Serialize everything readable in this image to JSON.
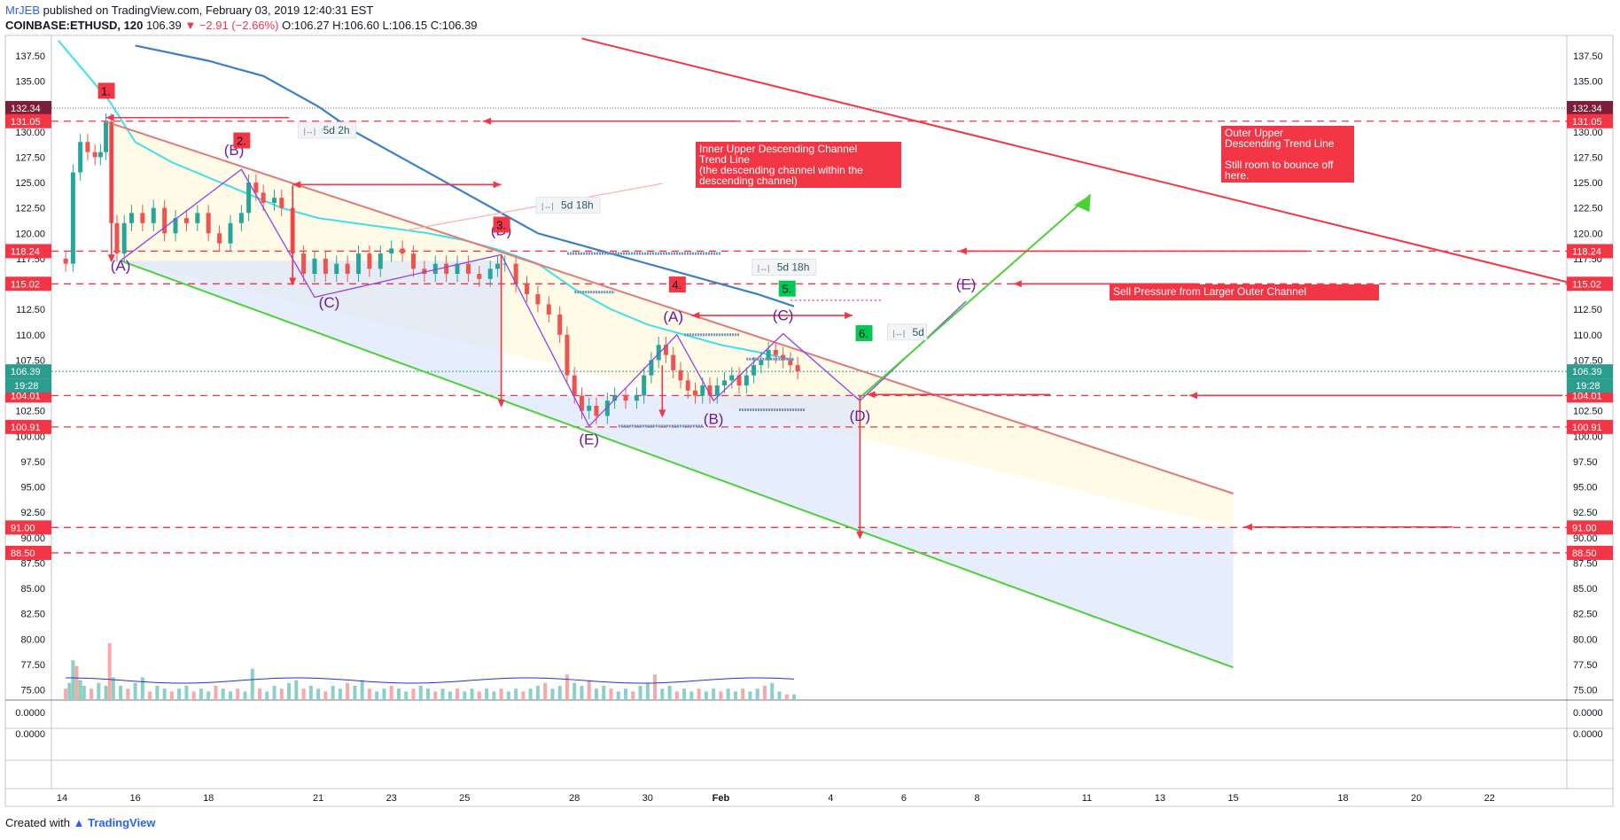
{
  "header": {
    "publisher": "MrJEB",
    "published_text": "published on TradingView.com, February 03, 2019 12:40:31 EST",
    "symbol": "COINBASE:ETHUSD, 120",
    "last": "106.39",
    "change": "−2.91 (−2.66%)",
    "ohlc": "O:106.27 H:106.60 L:106.15 C:106.39"
  },
  "footer": {
    "created_with": "Created with",
    "brand": "TradingView"
  },
  "chart_data": {
    "type": "candlestick",
    "symbol": "COINBASE:ETHUSD",
    "interval": "120",
    "ylim": [
      73.5,
      139.5
    ],
    "y_ticks": [
      "137.50",
      "135.00",
      "132.50",
      "130.00",
      "127.50",
      "125.00",
      "122.50",
      "120.00",
      "117.50",
      "115.00",
      "112.50",
      "110.00",
      "107.50",
      "105.00",
      "102.50",
      "100.00",
      "97.50",
      "95.00",
      "92.50",
      "90.00",
      "87.50",
      "85.00",
      "82.50",
      "80.00",
      "77.50",
      "75.00"
    ],
    "x_ticks": [
      {
        "label": "14",
        "d": 14
      },
      {
        "label": "16",
        "d": 16
      },
      {
        "label": "18",
        "d": 18
      },
      {
        "label": "21",
        "d": 21
      },
      {
        "label": "23",
        "d": 23
      },
      {
        "label": "25",
        "d": 25
      },
      {
        "label": "28",
        "d": 28
      },
      {
        "label": "30",
        "d": 30
      },
      {
        "label": "Feb",
        "d": 32
      },
      {
        "label": "4",
        "d": 35
      },
      {
        "label": "6",
        "d": 37
      },
      {
        "label": "8",
        "d": 39
      },
      {
        "label": "11",
        "d": 42
      },
      {
        "label": "13",
        "d": 44
      },
      {
        "label": "15",
        "d": 46
      },
      {
        "label": "18",
        "d": 49
      },
      {
        "label": "20",
        "d": 51
      },
      {
        "label": "22",
        "d": 53
      }
    ],
    "price_series": [
      [
        13.9,
        117.5
      ],
      [
        14.1,
        117
      ],
      [
        14.3,
        126
      ],
      [
        14.5,
        129
      ],
      [
        14.7,
        128
      ],
      [
        14.9,
        127.5
      ],
      [
        15.05,
        128
      ],
      [
        15.2,
        131
      ],
      [
        15.35,
        121
      ],
      [
        15.5,
        118
      ],
      [
        15.7,
        121
      ],
      [
        15.9,
        122
      ],
      [
        16.2,
        121
      ],
      [
        16.5,
        122.5
      ],
      [
        16.8,
        120
      ],
      [
        17.1,
        121.5
      ],
      [
        17.4,
        121
      ],
      [
        17.7,
        122
      ],
      [
        18.0,
        120
      ],
      [
        18.3,
        119
      ],
      [
        18.6,
        121
      ],
      [
        18.9,
        122
      ],
      [
        19.1,
        125
      ],
      [
        19.3,
        124
      ],
      [
        19.5,
        123
      ],
      [
        19.8,
        123.5
      ],
      [
        20.0,
        122.5
      ],
      [
        20.3,
        118
      ],
      [
        20.6,
        116
      ],
      [
        20.9,
        117.5
      ],
      [
        21.2,
        116
      ],
      [
        21.5,
        117
      ],
      [
        21.8,
        116
      ],
      [
        22.1,
        118
      ],
      [
        22.4,
        116.5
      ],
      [
        22.7,
        118
      ],
      [
        23.0,
        118.5
      ],
      [
        23.3,
        118
      ],
      [
        23.6,
        116.5
      ],
      [
        23.9,
        116
      ],
      [
        24.2,
        117
      ],
      [
        24.5,
        116
      ],
      [
        24.8,
        117
      ],
      [
        25.1,
        116
      ],
      [
        25.4,
        115.5
      ],
      [
        25.7,
        116.5
      ],
      [
        25.9,
        117
      ],
      [
        26.1,
        117
      ],
      [
        26.4,
        115
      ],
      [
        26.7,
        114
      ],
      [
        27.0,
        113
      ],
      [
        27.3,
        112
      ],
      [
        27.6,
        110
      ],
      [
        27.8,
        106
      ],
      [
        28.0,
        104
      ],
      [
        28.2,
        102.5
      ],
      [
        28.4,
        103
      ],
      [
        28.6,
        102
      ],
      [
        28.9,
        103.5
      ],
      [
        29.1,
        104
      ],
      [
        29.4,
        103.5
      ],
      [
        29.7,
        104
      ],
      [
        29.9,
        106
      ],
      [
        30.1,
        107.5
      ],
      [
        30.3,
        109
      ],
      [
        30.5,
        108
      ],
      [
        30.7,
        106.5
      ],
      [
        30.9,
        105.5
      ],
      [
        31.1,
        104.5
      ],
      [
        31.3,
        104
      ],
      [
        31.5,
        105
      ],
      [
        31.7,
        104
      ],
      [
        31.9,
        105
      ],
      [
        32.1,
        105.5
      ],
      [
        32.3,
        106
      ],
      [
        32.5,
        105
      ],
      [
        32.7,
        106
      ],
      [
        32.9,
        107
      ],
      [
        33.1,
        107.5
      ],
      [
        33.3,
        108.5
      ],
      [
        33.5,
        108
      ],
      [
        33.7,
        107.5
      ],
      [
        33.9,
        107
      ],
      [
        34.1,
        106.4
      ]
    ],
    "ma_fast": [
      [
        13.9,
        139
      ],
      [
        14.6,
        136
      ],
      [
        15.3,
        133
      ],
      [
        16,
        129
      ],
      [
        17,
        127
      ],
      [
        18,
        125.5
      ],
      [
        19,
        124
      ],
      [
        20,
        122.5
      ],
      [
        21,
        121.5
      ],
      [
        22,
        121
      ],
      [
        23,
        120.5
      ],
      [
        24,
        120
      ],
      [
        25,
        119.3
      ],
      [
        26,
        118.3
      ],
      [
        27,
        117
      ],
      [
        28,
        114.5
      ],
      [
        29,
        112.5
      ],
      [
        30,
        111
      ],
      [
        31,
        110
      ],
      [
        32,
        109
      ],
      [
        33,
        108.3
      ],
      [
        34,
        107.5
      ]
    ],
    "ma_slow": [
      [
        16,
        138.5
      ],
      [
        18,
        137
      ],
      [
        19.5,
        135.5
      ],
      [
        21,
        132.5
      ],
      [
        22,
        130
      ],
      [
        23,
        128
      ],
      [
        24,
        126
      ],
      [
        25,
        124
      ],
      [
        26,
        122
      ],
      [
        27,
        120
      ],
      [
        28,
        119
      ],
      [
        29,
        118
      ],
      [
        30,
        117
      ],
      [
        31,
        116
      ],
      [
        32,
        115
      ],
      [
        33,
        114
      ],
      [
        34,
        112.8
      ]
    ],
    "volume_bars": [
      [
        14.1,
        4
      ],
      [
        14.2,
        6
      ],
      [
        14.3,
        14
      ],
      [
        14.4,
        12
      ],
      [
        14.5,
        7
      ],
      [
        14.6,
        5
      ],
      [
        14.8,
        4
      ],
      [
        15.0,
        6
      ],
      [
        15.2,
        5
      ],
      [
        15.3,
        20
      ],
      [
        15.4,
        8
      ],
      [
        15.6,
        5
      ],
      [
        15.8,
        4
      ],
      [
        16.0,
        6
      ],
      [
        16.2,
        8
      ],
      [
        16.4,
        3
      ],
      [
        16.6,
        5
      ],
      [
        16.8,
        4
      ],
      [
        17.0,
        3
      ],
      [
        17.2,
        4
      ],
      [
        17.4,
        5
      ],
      [
        17.6,
        3
      ],
      [
        17.8,
        4
      ],
      [
        18.0,
        3
      ],
      [
        18.2,
        5
      ],
      [
        18.4,
        4
      ],
      [
        18.6,
        3
      ],
      [
        18.8,
        4
      ],
      [
        19.0,
        3
      ],
      [
        19.2,
        11
      ],
      [
        19.4,
        4
      ],
      [
        19.6,
        3
      ],
      [
        19.8,
        5
      ],
      [
        20.0,
        4
      ],
      [
        20.2,
        6
      ],
      [
        20.4,
        7
      ],
      [
        20.6,
        4
      ],
      [
        20.8,
        5
      ],
      [
        21.0,
        4
      ],
      [
        21.2,
        3
      ],
      [
        21.4,
        5
      ],
      [
        21.6,
        4
      ],
      [
        21.8,
        6
      ],
      [
        22.0,
        5
      ],
      [
        22.2,
        7
      ],
      [
        22.4,
        4
      ],
      [
        22.6,
        3
      ],
      [
        22.8,
        4
      ],
      [
        23.0,
        5
      ],
      [
        23.2,
        4
      ],
      [
        23.4,
        3
      ],
      [
        23.6,
        4
      ],
      [
        23.8,
        5
      ],
      [
        24.0,
        4
      ],
      [
        24.2,
        3
      ],
      [
        24.4,
        4
      ],
      [
        24.6,
        3
      ],
      [
        24.8,
        4
      ],
      [
        25.0,
        3
      ],
      [
        25.2,
        4
      ],
      [
        25.4,
        3
      ],
      [
        25.6,
        4
      ],
      [
        25.8,
        3
      ],
      [
        26.0,
        4
      ],
      [
        26.2,
        3
      ],
      [
        26.4,
        4
      ],
      [
        26.6,
        3
      ],
      [
        26.8,
        4
      ],
      [
        27.0,
        5
      ],
      [
        27.2,
        6
      ],
      [
        27.4,
        4
      ],
      [
        27.6,
        5
      ],
      [
        27.8,
        9
      ],
      [
        28.0,
        6
      ],
      [
        28.2,
        5
      ],
      [
        28.4,
        7
      ],
      [
        28.6,
        4
      ],
      [
        28.8,
        5
      ],
      [
        29.0,
        4
      ],
      [
        29.2,
        3
      ],
      [
        29.4,
        4
      ],
      [
        29.6,
        3
      ],
      [
        29.8,
        5
      ],
      [
        30.0,
        6
      ],
      [
        30.2,
        9
      ],
      [
        30.4,
        4
      ],
      [
        30.6,
        5
      ],
      [
        30.8,
        3
      ],
      [
        31.0,
        4
      ],
      [
        31.2,
        3
      ],
      [
        31.4,
        4
      ],
      [
        31.6,
        3
      ],
      [
        31.8,
        4
      ],
      [
        32.0,
        3
      ],
      [
        32.2,
        4
      ],
      [
        32.4,
        3
      ],
      [
        32.6,
        4
      ],
      [
        32.8,
        3
      ],
      [
        33.0,
        4
      ],
      [
        33.2,
        5
      ],
      [
        33.4,
        6
      ],
      [
        33.6,
        3
      ],
      [
        33.8,
        2
      ],
      [
        34.0,
        2
      ]
    ],
    "y_labels": [
      {
        "v": 132.34,
        "label": "132.34",
        "color": "#7b1f3a"
      },
      {
        "v": 131.05,
        "label": "131.05",
        "color": "#f23645"
      },
      {
        "v": 118.24,
        "label": "118.24",
        "color": "#f23645"
      },
      {
        "v": 115.02,
        "label": "115.02",
        "color": "#f23645"
      },
      {
        "v": 106.39,
        "label": "106.39",
        "color": "#2a9d8f"
      },
      {
        "v": 104.01,
        "label": "104.01",
        "color": "#f23645"
      },
      {
        "v": 100.91,
        "label": "100.91",
        "color": "#f23645"
      },
      {
        "v": 91.0,
        "label": "91.00",
        "color": "#f23645"
      },
      {
        "v": 88.5,
        "label": "88.50",
        "color": "#f23645"
      }
    ],
    "countdown": "19:28",
    "horizontal_lines": [
      131.05,
      118.24,
      115.02,
      104.01,
      100.91,
      91.0,
      88.5
    ],
    "indicator_panel": {
      "label": "0.0000"
    },
    "wave_labels": [
      {
        "text": "(A)",
        "d": 15.6,
        "v": 116.3
      },
      {
        "text": "(B)",
        "d": 18.7,
        "v": 127.7
      },
      {
        "text": "(C)",
        "d": 21.3,
        "v": 112.7
      },
      {
        "text": "(D)",
        "d": 26.0,
        "v": 119.8
      },
      {
        "text": "(E)",
        "d": 28.4,
        "v": 99.2
      },
      {
        "text": "(A)",
        "d": 30.7,
        "v": 111.3
      },
      {
        "text": "(B)",
        "d": 31.8,
        "v": 101.2
      },
      {
        "text": "(C)",
        "d": 33.7,
        "v": 111.4
      },
      {
        "text": "(D)",
        "d": 35.8,
        "v": 101.5
      },
      {
        "text": "(E)",
        "d": 38.7,
        "v": 114.5
      }
    ],
    "number_tags": [
      {
        "text": "1.",
        "d": 15.2,
        "v": 133.7,
        "color": "#f23645"
      },
      {
        "text": "2.",
        "d": 18.9,
        "v": 128.8,
        "color": "#f23645"
      },
      {
        "text": "3.",
        "d": 26.0,
        "v": 120.5,
        "color": "#f23645"
      },
      {
        "text": "4.",
        "d": 30.8,
        "v": 114.6,
        "color": "#f23645"
      },
      {
        "text": "5.",
        "d": 33.8,
        "v": 114.2,
        "color": "#00c853"
      },
      {
        "text": "6.",
        "d": 35.9,
        "v": 109.8,
        "color": "#00c853"
      }
    ],
    "time_labels": [
      {
        "text": "5d 2h",
        "d": 20.6,
        "v": 129.9
      },
      {
        "text": "5d 18h",
        "d": 27.1,
        "v": 122.5
      },
      {
        "text": "5d 18h",
        "d": 33.0,
        "v": 116.4
      },
      {
        "text": "5d",
        "d": 36.7,
        "v": 110.0
      }
    ],
    "annotations": [
      {
        "text_lines": [
          "Inner Upper Descending Channel",
          "Trend Line",
          "(the descending channel within the",
          "descending channel)"
        ]
      },
      {
        "text_lines": [
          "Outer Upper",
          "Descending Trend Line",
          "",
          "Still room to bounce off",
          "here."
        ]
      },
      {
        "text_lines": [
          "Sell Pressure from Larger Outer Channel"
        ]
      }
    ]
  }
}
